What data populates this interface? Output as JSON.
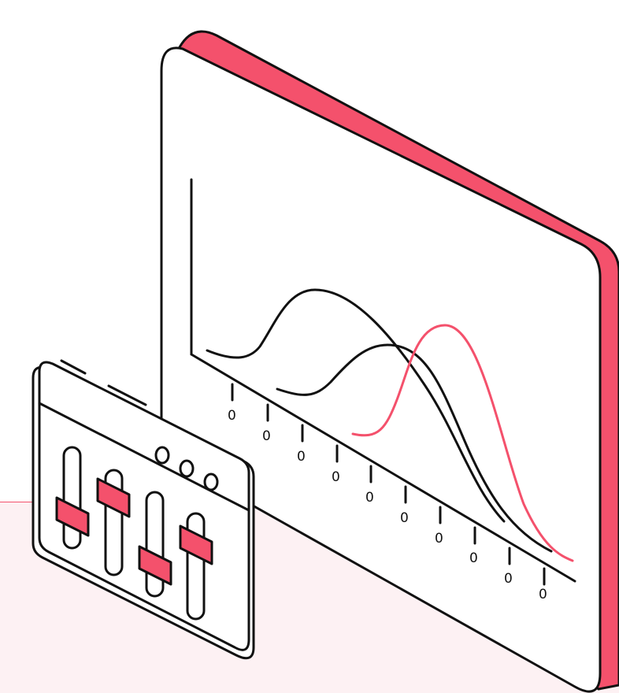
{
  "colors": {
    "accent": "#f4516c",
    "ink": "#111111",
    "floor": "#fdf1f3",
    "panel": "#ffffff"
  },
  "monitor": {
    "axis_tick_labels": [
      "0",
      "0",
      "0",
      "0",
      "0",
      "0",
      "0",
      "0",
      "0",
      "0"
    ]
  },
  "mixer": {
    "window_buttons": [
      "circle",
      "circle",
      "circle"
    ],
    "slider_count": 4
  },
  "icons": {
    "monitor": "chart-monitor-icon",
    "mixer": "equalizer-sliders-icon"
  }
}
